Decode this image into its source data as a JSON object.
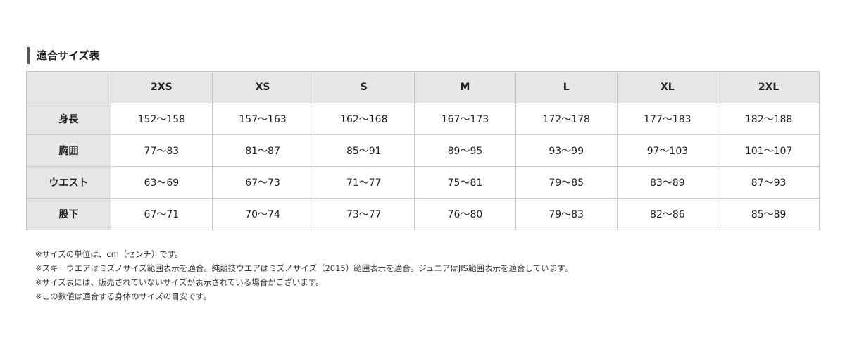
{
  "title": "適合サイズ表",
  "table": {
    "headers": [
      "",
      "2XS",
      "XS",
      "S",
      "M",
      "L",
      "XL",
      "2XL"
    ],
    "rows": [
      {
        "label": "身長",
        "values": [
          "152〜158",
          "157〜163",
          "162〜168",
          "167〜173",
          "172〜178",
          "177〜183",
          "182〜188"
        ]
      },
      {
        "label": "胸囲",
        "values": [
          "77〜83",
          "81〜87",
          "85〜91",
          "89〜95",
          "93〜99",
          "97〜103",
          "101〜107"
        ]
      },
      {
        "label": "ウエスト",
        "values": [
          "63〜69",
          "67〜73",
          "71〜77",
          "75〜81",
          "79〜85",
          "83〜89",
          "87〜93"
        ]
      },
      {
        "label": "股下",
        "values": [
          "67〜71",
          "70〜74",
          "73〜77",
          "76〜80",
          "79〜83",
          "82〜86",
          "85〜89"
        ]
      }
    ]
  },
  "notes": [
    "※サイズの単位は、cm（センチ）です。",
    "※スキーウエアはミズノサイズ範囲表示を適合。純競技ウエアはミズノサイズ（2015）範囲表示を適合。ジュニアはJIS範囲表示を適合しています。",
    "※サイズ表には、販売されていないサイズが表示されている場合がございます。",
    "※この数値は適合する身体のサイズの目安です。"
  ]
}
